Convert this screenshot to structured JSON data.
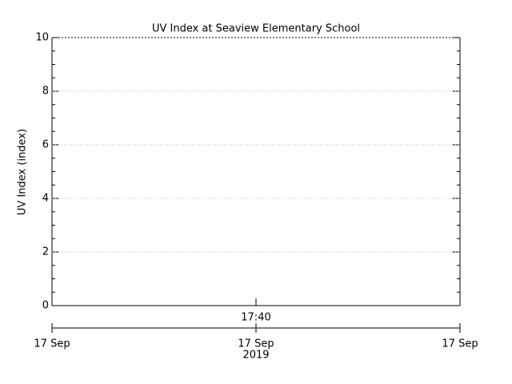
{
  "chart_data": {
    "type": "line",
    "title": "UV Index at Seaview Elementary School",
    "y_label": "UV Index (index)",
    "ylim": [
      0,
      10
    ],
    "yticks": [
      0,
      2,
      4,
      6,
      8,
      10
    ],
    "grid": true,
    "x_tick_labels": [
      "17:40"
    ],
    "date_labels": [
      "17 Sep",
      "17 Sep",
      "17 Sep"
    ],
    "year_label": "2019",
    "series": []
  }
}
